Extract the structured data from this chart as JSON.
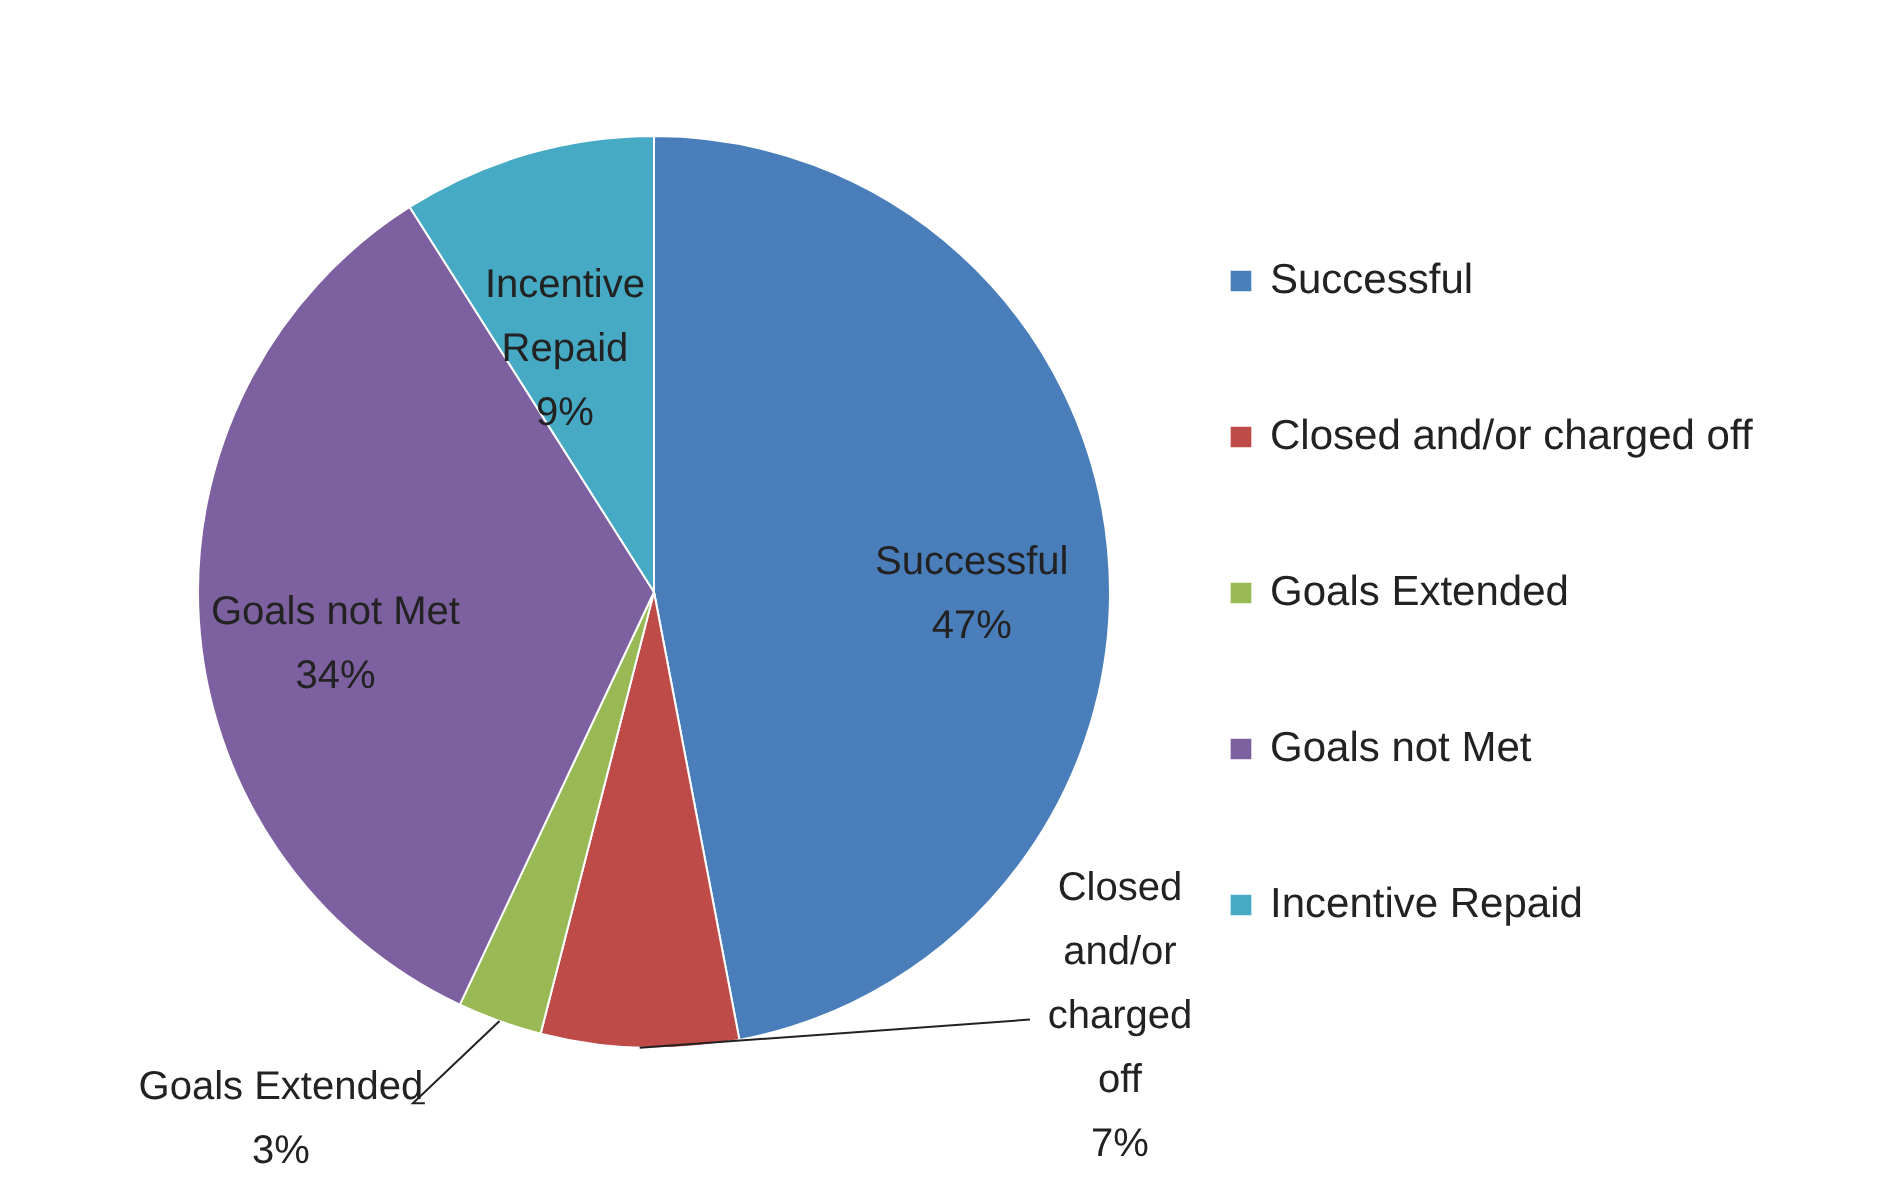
{
  "chart_data": {
    "type": "pie",
    "categories": [
      "Successful",
      "Closed and/or charged off",
      "Goals Extended",
      "Goals not Met",
      "Incentive Repaid"
    ],
    "values": [
      47,
      7,
      3,
      34,
      9
    ],
    "value_labels": [
      "47%",
      "7%",
      "3%",
      "34%",
      "9%"
    ],
    "colors": [
      "#4a7ebb",
      "#be4b48",
      "#98b954",
      "#7d60a0",
      "#46aac5"
    ],
    "legend": "right"
  }
}
